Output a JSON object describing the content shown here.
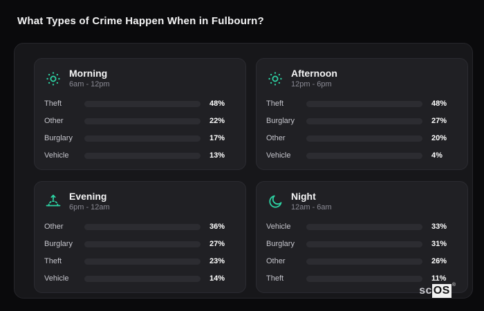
{
  "page": {
    "title": "What Types of Crime Happen When in Fulbourn?"
  },
  "logo": {
    "prefix": "sc",
    "suffix": "OS",
    "mark": "®"
  },
  "colors": {
    "theft": "#a259e6",
    "other": "#64748b",
    "burglary": "#e2711c",
    "vehicle": "#3b78e7",
    "accent": "#2dd4a4",
    "track": "#2c2c31",
    "panel_bg": "#202024",
    "container_bg": "#17171a",
    "page_bg": "#0a0a0c"
  },
  "chart_data": [
    {
      "type": "bar",
      "title": "Morning",
      "subtitle": "6am - 12pm",
      "icon": "sun-icon",
      "unit": "%",
      "xlim": [
        0,
        100
      ],
      "categories": [
        "Theft",
        "Other",
        "Burglary",
        "Vehicle"
      ],
      "values": [
        48,
        22,
        17,
        13
      ]
    },
    {
      "type": "bar",
      "title": "Afternoon",
      "subtitle": "12pm - 6pm",
      "icon": "sun-icon",
      "unit": "%",
      "xlim": [
        0,
        100
      ],
      "categories": [
        "Theft",
        "Burglary",
        "Other",
        "Vehicle"
      ],
      "values": [
        48,
        27,
        20,
        4
      ]
    },
    {
      "type": "bar",
      "title": "Evening",
      "subtitle": "6pm - 12am",
      "icon": "sunrise-icon",
      "unit": "%",
      "xlim": [
        0,
        100
      ],
      "categories": [
        "Other",
        "Burglary",
        "Theft",
        "Vehicle"
      ],
      "values": [
        36,
        27,
        23,
        14
      ]
    },
    {
      "type": "bar",
      "title": "Night",
      "subtitle": "12am - 6am",
      "icon": "moon-icon",
      "unit": "%",
      "xlim": [
        0,
        100
      ],
      "categories": [
        "Vehicle",
        "Burglary",
        "Other",
        "Theft"
      ],
      "values": [
        33,
        31,
        26,
        11
      ]
    }
  ]
}
